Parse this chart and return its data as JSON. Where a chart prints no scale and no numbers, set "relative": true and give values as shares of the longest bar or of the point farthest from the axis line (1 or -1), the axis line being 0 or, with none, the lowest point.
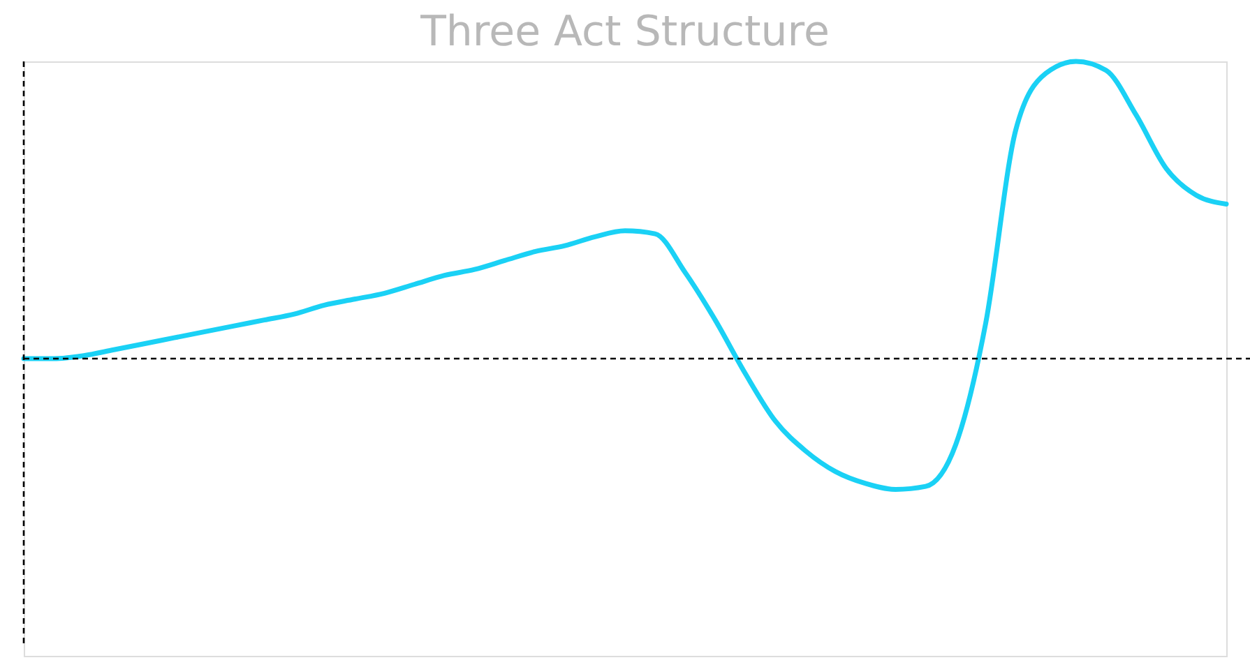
{
  "chart_data": {
    "type": "line",
    "title": "Three Act Structure",
    "relative": true,
    "categories": [
      null,
      null,
      null,
      null,
      null,
      null,
      null,
      null,
      null,
      null,
      null,
      null,
      null,
      null,
      null,
      null,
      null,
      null,
      null,
      null,
      null,
      null,
      null,
      null,
      null,
      null,
      null,
      null,
      null,
      null,
      null,
      null,
      null,
      null,
      null,
      null,
      null,
      null,
      null,
      null,
      null
    ],
    "series": [
      {
        "color": "#1ad1f5",
        "values": [
          0,
          0.0,
          0.01,
          0.03,
          0.05,
          0.07,
          0.09,
          0.11,
          0.13,
          0.15,
          0.18,
          0.2,
          0.22,
          0.25,
          0.28,
          0.3,
          0.33,
          0.36,
          0.38,
          0.41,
          0.43,
          0.42,
          0.29,
          0.13,
          -0.05,
          -0.21,
          -0.31,
          -0.38,
          -0.42,
          -0.44,
          -0.43,
          -0.29,
          0.12,
          0.77,
          0.96,
          1.0,
          0.97,
          0.82,
          0.64,
          0.55,
          0.52
        ]
      }
    ],
    "ref_lines": [
      {
        "axis": "y",
        "value": 0,
        "color": "#000000",
        "line_style": "dashed"
      }
    ],
    "grid": false,
    "legend": false,
    "marker": "none",
    "line_style": "solid",
    "tick_labels": false
  }
}
